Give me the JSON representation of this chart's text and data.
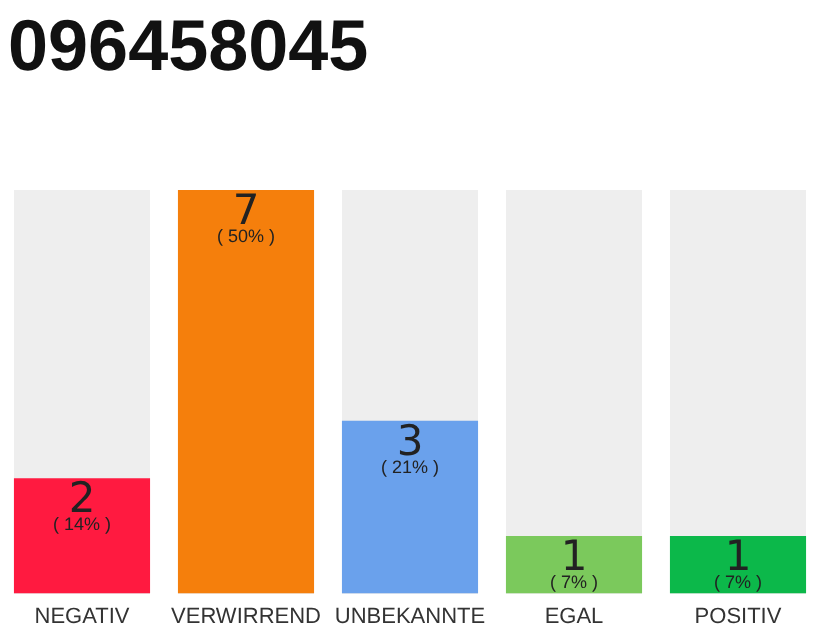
{
  "chart_data": {
    "type": "bar",
    "title": "096458045",
    "categories": [
      "NEGATIV",
      "VERWIRREND",
      "UNBEKANNTE",
      "EGAL",
      "POSITIV"
    ],
    "values": [
      2,
      7,
      3,
      1,
      1
    ],
    "colors": [
      "#ff1a40",
      "#f57f0c",
      "#6aa1ec",
      "#7bc95c",
      "#0cb84a"
    ],
    "data_labels": true,
    "annotations": [
      "( 14% )",
      "( 50% )",
      "( 21% )",
      "( 7% )",
      "( 7% )"
    ],
    "grid": false,
    "legend": false
  }
}
